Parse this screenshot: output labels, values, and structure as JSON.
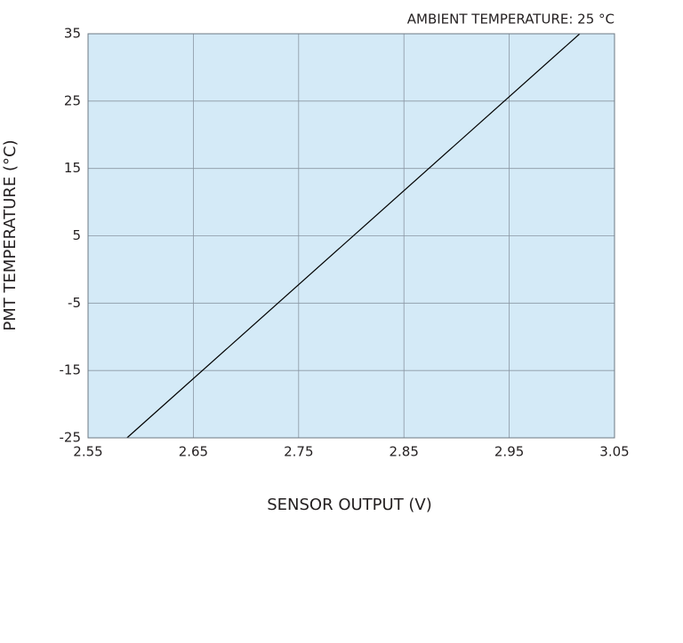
{
  "chart_data": {
    "type": "line",
    "annotation": "AMBIENT TEMPERATURE: 25 °C",
    "x_label": "SENSOR OUTPUT (V)",
    "y_label": "PMT TEMPERATURE (°C)",
    "x": [
      2.587,
      3.017
    ],
    "series": [
      {
        "name": "PMT temperature",
        "color": "#000000",
        "values": [
          -25,
          35
        ]
      }
    ],
    "xlim": [
      2.55,
      3.05
    ],
    "xticks": [
      2.55,
      2.65,
      2.75,
      2.85,
      2.95,
      3.05
    ],
    "ylim": [
      -25,
      35
    ],
    "yticks": [
      35,
      25,
      15,
      5,
      -5,
      -15,
      -25
    ],
    "grid": true,
    "background": "#d4eaf7",
    "grid_color": "#8a96a3"
  }
}
